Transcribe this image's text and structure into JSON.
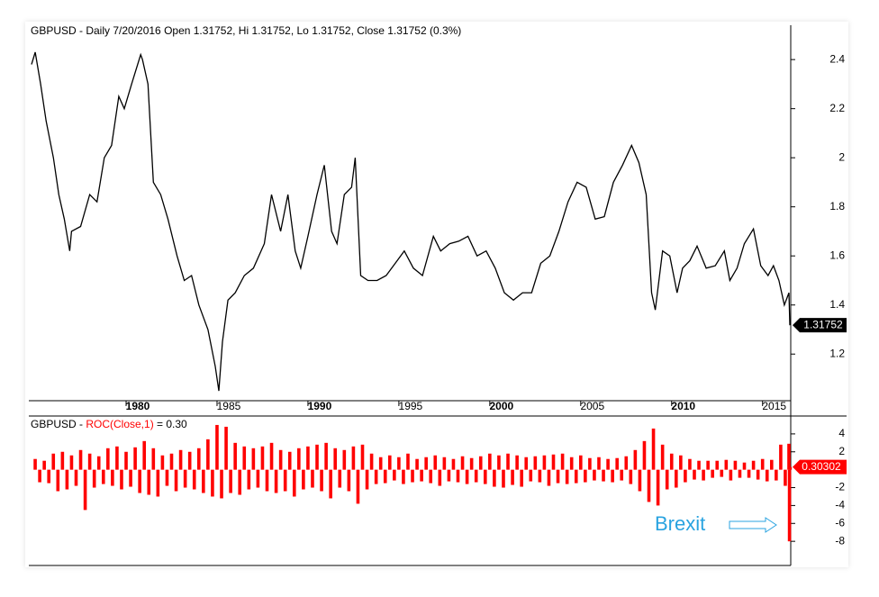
{
  "chart_data": [
    {
      "type": "line",
      "title": "GBPUSD - Daily 7/20/2016 Open 1.31752, Hi 1.31752, Lo 1.31752, Close 1.31752 (0.3%)",
      "color": "#000000",
      "xlim": [
        1974.65,
        2016.55
      ],
      "xticks": [
        1980,
        1985,
        1990,
        1995,
        2000,
        2005,
        2010,
        2015
      ],
      "ylim": [
        1.01,
        2.54
      ],
      "yticks": [
        1.2,
        1.4,
        1.6,
        1.8,
        2.0,
        2.2,
        2.4
      ],
      "x": [
        1974.8,
        1975.0,
        1975.3,
        1975.6,
        1976.0,
        1976.3,
        1976.6,
        1976.9,
        1977.0,
        1977.5,
        1978.0,
        1978.4,
        1978.8,
        1979.2,
        1979.6,
        1979.9,
        1980.3,
        1980.8,
        1980.9,
        1981.2,
        1981.5,
        1981.9,
        1982.3,
        1982.8,
        1983.2,
        1983.6,
        1984.0,
        1984.5,
        1984.9,
        1985.1,
        1985.3,
        1985.6,
        1986.0,
        1986.5,
        1987.0,
        1987.6,
        1988.0,
        1988.5,
        1988.9,
        1989.3,
        1989.6,
        1990.0,
        1990.5,
        1990.9,
        1991.3,
        1991.6,
        1992.0,
        1992.4,
        1992.6,
        1992.9,
        1993.3,
        1993.8,
        1994.3,
        1994.9,
        1995.3,
        1995.8,
        1996.3,
        1996.9,
        1997.3,
        1997.8,
        1998.3,
        1998.8,
        1999.3,
        1999.8,
        2000.3,
        2000.8,
        2001.3,
        2001.8,
        2002.3,
        2002.8,
        2003.3,
        2003.8,
        2004.3,
        2004.8,
        2005.3,
        2005.8,
        2006.3,
        2006.8,
        2007.3,
        2007.8,
        2008.2,
        2008.6,
        2008.9,
        2009.1,
        2009.5,
        2009.9,
        2010.3,
        2010.6,
        2011.0,
        2011.4,
        2011.9,
        2012.4,
        2012.9,
        2013.2,
        2013.6,
        2014.0,
        2014.5,
        2014.9,
        2015.3,
        2015.6,
        2015.9,
        2016.2,
        2016.45,
        2016.5
      ],
      "values": [
        2.38,
        2.43,
        2.3,
        2.15,
        2.0,
        1.85,
        1.75,
        1.62,
        1.7,
        1.72,
        1.85,
        1.82,
        2.0,
        2.05,
        2.25,
        2.2,
        2.3,
        2.42,
        2.4,
        2.3,
        1.9,
        1.85,
        1.75,
        1.6,
        1.5,
        1.52,
        1.4,
        1.3,
        1.15,
        1.05,
        1.25,
        1.42,
        1.45,
        1.52,
        1.55,
        1.65,
        1.85,
        1.7,
        1.85,
        1.62,
        1.55,
        1.68,
        1.85,
        1.97,
        1.7,
        1.65,
        1.85,
        1.88,
        2.0,
        1.52,
        1.5,
        1.5,
        1.52,
        1.58,
        1.62,
        1.55,
        1.52,
        1.68,
        1.62,
        1.65,
        1.66,
        1.68,
        1.6,
        1.62,
        1.55,
        1.45,
        1.42,
        1.45,
        1.45,
        1.57,
        1.6,
        1.7,
        1.82,
        1.9,
        1.88,
        1.75,
        1.76,
        1.9,
        1.97,
        2.05,
        1.98,
        1.85,
        1.45,
        1.38,
        1.62,
        1.6,
        1.45,
        1.55,
        1.58,
        1.64,
        1.55,
        1.56,
        1.62,
        1.5,
        1.55,
        1.65,
        1.71,
        1.56,
        1.52,
        1.56,
        1.5,
        1.4,
        1.45,
        1.31752
      ]
    },
    {
      "type": "bar",
      "title_parts": [
        "GBPUSD - ",
        "ROC(Close,1)",
        " = 0.30"
      ],
      "color": "#ff0000",
      "annotation": "Brexit",
      "xlim": [
        1974.65,
        2016.55
      ],
      "ylim": [
        -10.6,
        5.9
      ],
      "yticks": [
        4,
        2,
        -2,
        -4,
        -6,
        -8
      ],
      "x": [
        1975.0,
        1975.25,
        1975.5,
        1975.75,
        1976.0,
        1976.25,
        1976.5,
        1976.75,
        1977.0,
        1977.25,
        1977.5,
        1977.75,
        1978.0,
        1978.25,
        1978.5,
        1978.75,
        1979.0,
        1979.25,
        1979.5,
        1979.75,
        1980.0,
        1980.25,
        1980.5,
        1980.75,
        1981.0,
        1981.25,
        1981.5,
        1981.75,
        1982.0,
        1982.25,
        1982.5,
        1982.75,
        1983.0,
        1983.25,
        1983.5,
        1983.75,
        1984.0,
        1984.25,
        1984.5,
        1984.75,
        1985.0,
        1985.25,
        1985.5,
        1985.75,
        1986.0,
        1986.25,
        1986.5,
        1986.75,
        1987.0,
        1987.25,
        1987.5,
        1987.75,
        1988.0,
        1988.25,
        1988.5,
        1988.75,
        1989.0,
        1989.25,
        1989.5,
        1989.75,
        1990.0,
        1990.25,
        1990.5,
        1990.75,
        1991.0,
        1991.25,
        1991.5,
        1991.75,
        1992.0,
        1992.25,
        1992.5,
        1992.75,
        1993.0,
        1993.25,
        1993.5,
        1993.75,
        1994.0,
        1994.25,
        1994.5,
        1994.75,
        1995.0,
        1995.25,
        1995.5,
        1995.75,
        1996.0,
        1996.25,
        1996.5,
        1996.75,
        1997.0,
        1997.25,
        1997.5,
        1997.75,
        1998.0,
        1998.25,
        1998.5,
        1998.75,
        1999.0,
        1999.25,
        1999.5,
        1999.75,
        2000.0,
        2000.25,
        2000.5,
        2000.75,
        2001.0,
        2001.25,
        2001.5,
        2001.75,
        2002.0,
        2002.25,
        2002.5,
        2002.75,
        2003.0,
        2003.25,
        2003.5,
        2003.75,
        2004.0,
        2004.25,
        2004.5,
        2004.75,
        2005.0,
        2005.25,
        2005.5,
        2005.75,
        2006.0,
        2006.25,
        2006.5,
        2006.75,
        2007.0,
        2007.25,
        2007.5,
        2007.75,
        2008.0,
        2008.25,
        2008.5,
        2008.75,
        2009.0,
        2009.25,
        2009.5,
        2009.75,
        2010.0,
        2010.25,
        2010.5,
        2010.75,
        2011.0,
        2011.25,
        2011.5,
        2011.75,
        2012.0,
        2012.25,
        2012.5,
        2012.75,
        2013.0,
        2013.25,
        2013.5,
        2013.75,
        2014.0,
        2014.25,
        2014.5,
        2014.75,
        2015.0,
        2015.25,
        2015.5,
        2015.75,
        2016.0,
        2016.25,
        2016.45,
        2016.48,
        2016.52
      ],
      "values": [
        1.2,
        -1.4,
        1.0,
        -1.5,
        1.8,
        -2.4,
        2.0,
        -2.2,
        1.6,
        -1.8,
        2.2,
        -4.5,
        1.8,
        -2.0,
        1.5,
        -1.6,
        2.4,
        -1.8,
        2.6,
        -2.2,
        2.0,
        -1.9,
        2.5,
        -2.6,
        3.2,
        -2.8,
        2.4,
        -3.0,
        1.6,
        -1.8,
        1.8,
        -2.4,
        2.2,
        -2.0,
        2.0,
        -2.2,
        2.4,
        -2.6,
        3.4,
        -3.0,
        5.0,
        -3.2,
        4.8,
        -2.6,
        3.0,
        -2.8,
        2.6,
        -2.2,
        2.4,
        -2.0,
        2.6,
        -2.4,
        3.0,
        -2.6,
        2.2,
        -2.4,
        2.0,
        -3.0,
        2.4,
        -2.2,
        2.6,
        -2.0,
        2.8,
        -2.4,
        3.0,
        -3.2,
        2.4,
        -2.0,
        2.2,
        -2.4,
        2.6,
        -3.8,
        2.8,
        -2.2,
        1.8,
        -1.6,
        1.4,
        -1.5,
        1.6,
        -1.2,
        1.4,
        -1.6,
        1.8,
        -1.4,
        1.2,
        -1.3,
        1.4,
        -1.5,
        1.6,
        -1.8,
        1.4,
        -1.3,
        1.2,
        -1.4,
        1.5,
        -1.6,
        1.3,
        -1.4,
        1.5,
        -1.6,
        1.8,
        -1.9,
        1.6,
        -2.0,
        1.8,
        -1.7,
        1.6,
        -1.9,
        1.4,
        -1.3,
        1.5,
        -1.4,
        1.6,
        -1.8,
        1.7,
        -1.5,
        1.8,
        -1.6,
        1.4,
        -1.5,
        1.6,
        -1.4,
        1.3,
        -1.2,
        1.4,
        -1.3,
        1.2,
        -1.4,
        1.3,
        -1.2,
        1.5,
        -1.6,
        2.2,
        -2.4,
        3.2,
        -3.6,
        4.6,
        -4.0,
        2.8,
        -2.2,
        1.8,
        -2.0,
        1.6,
        -1.4,
        1.2,
        -1.1,
        1.0,
        -1.2,
        1.0,
        -0.9,
        1.0,
        -0.8,
        1.1,
        -1.2,
        1.0,
        -0.9,
        0.8,
        -0.9,
        1.0,
        -1.1,
        1.2,
        -1.3,
        1.1,
        -1.2,
        2.8,
        -1.8,
        2.9,
        -8.0,
        0.30302
      ]
    }
  ]
}
